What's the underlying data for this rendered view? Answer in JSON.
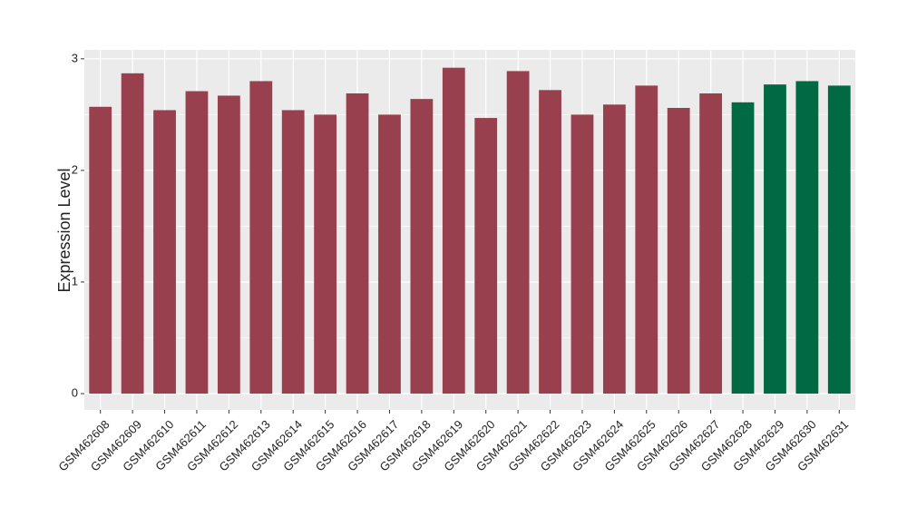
{
  "chart_data": {
    "type": "bar",
    "y_label": "Expression Level",
    "categories": [
      "GSM462608",
      "GSM462609",
      "GSM462610",
      "GSM462611",
      "GSM462612",
      "GSM462613",
      "GSM462614",
      "GSM462615",
      "GSM462616",
      "GSM462617",
      "GSM462618",
      "GSM462619",
      "GSM462620",
      "GSM462621",
      "GSM462622",
      "GSM462623",
      "GSM462624",
      "GSM462625",
      "GSM462626",
      "GSM462627",
      "GSM462628",
      "GSM462629",
      "GSM462630",
      "GSM462631"
    ],
    "values": [
      2.57,
      2.87,
      2.54,
      2.71,
      2.67,
      2.8,
      2.54,
      2.5,
      2.69,
      2.5,
      2.64,
      2.92,
      2.47,
      2.89,
      2.72,
      2.5,
      2.59,
      2.76,
      2.56,
      2.69,
      2.61,
      2.77,
      2.8,
      2.76
    ],
    "colors": [
      "#99404f",
      "#99404f",
      "#99404f",
      "#99404f",
      "#99404f",
      "#99404f",
      "#99404f",
      "#99404f",
      "#99404f",
      "#99404f",
      "#99404f",
      "#99404f",
      "#99404f",
      "#99404f",
      "#99404f",
      "#99404f",
      "#99404f",
      "#99404f",
      "#99404f",
      "#99404f",
      "#006a44",
      "#006a44",
      "#006a44",
      "#006a44"
    ],
    "ylim": [
      -0.146,
      3.08
    ],
    "yticks": [
      0,
      1,
      2,
      3
    ],
    "minor_yticks": [
      0.5,
      1.5,
      2.5
    ],
    "grid": true
  }
}
